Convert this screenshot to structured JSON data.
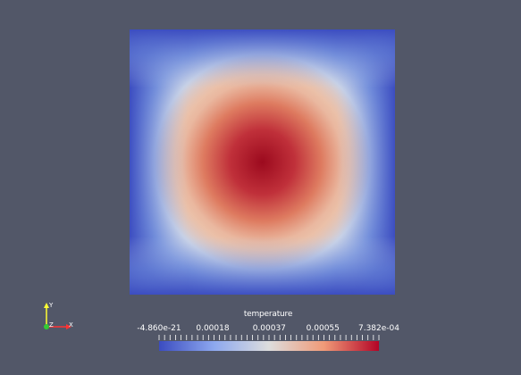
{
  "scalar_bar": {
    "title": "temperature",
    "ticks": [
      {
        "label": "-4.860e-21",
        "value": -4.86e-21
      },
      {
        "label": "0.00018",
        "value": 0.00018
      },
      {
        "label": "0.00037",
        "value": 0.00037
      },
      {
        "label": "0.00055",
        "value": 0.00055
      },
      {
        "label": "7.382e-04",
        "value": 0.0007382
      }
    ],
    "range": [
      -4.86e-21,
      0.0007382
    ],
    "colormap": [
      "#3b4cc0",
      "#dddddd",
      "#b40426"
    ]
  },
  "orientation_axes": {
    "x_label": "X",
    "y_label": "Y",
    "z_label": "Z",
    "x_color": "#ff3333",
    "y_color": "#ffff33",
    "z_color": "#33cc33"
  },
  "colors": {
    "background": "#525768"
  }
}
